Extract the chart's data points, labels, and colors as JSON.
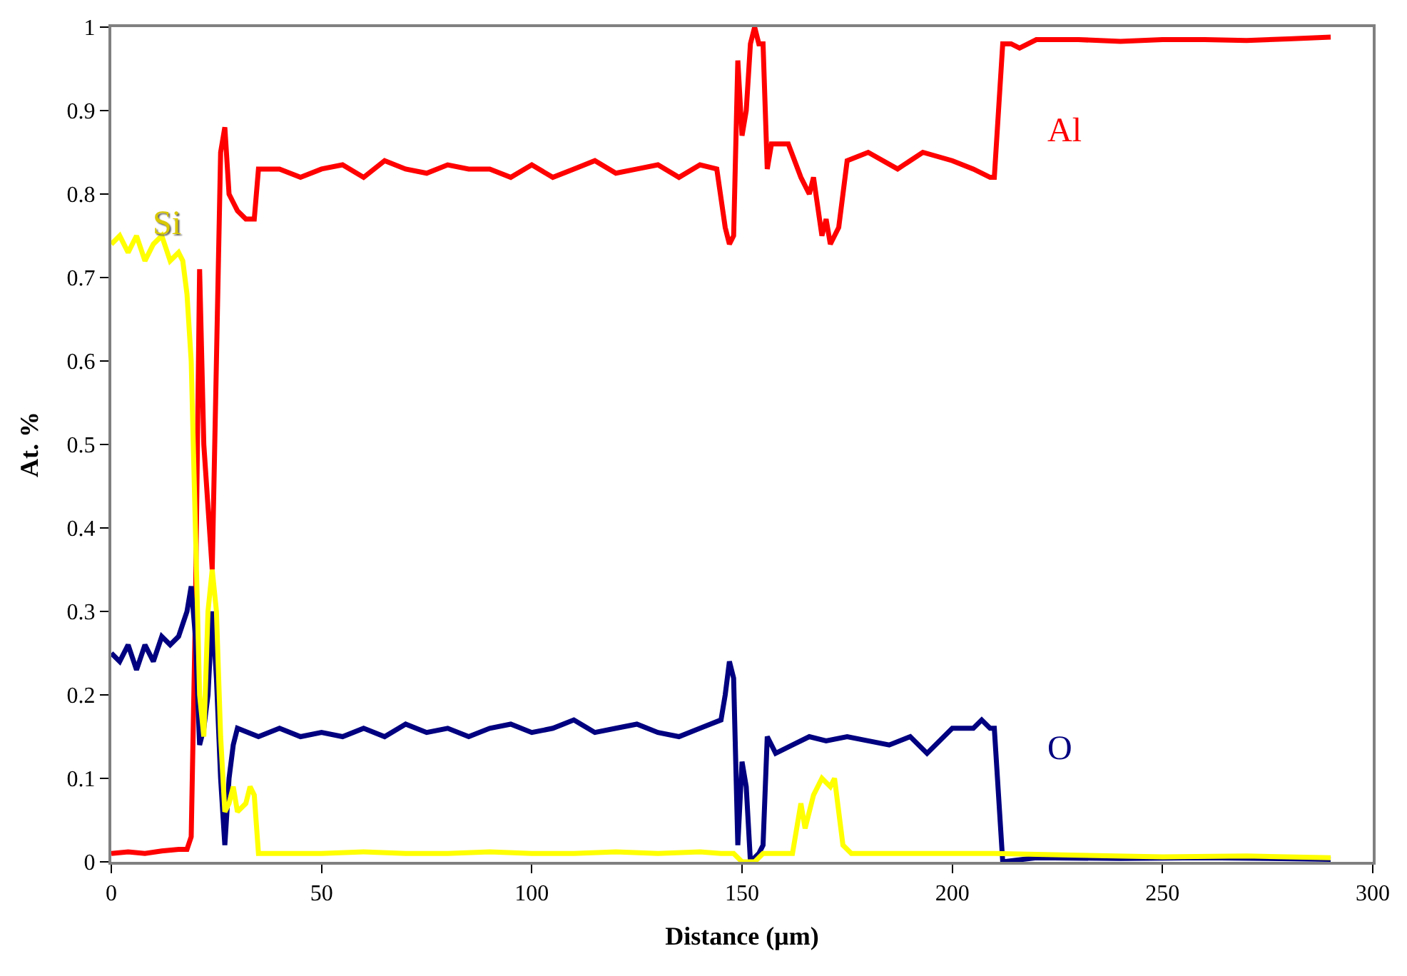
{
  "chart_data": {
    "type": "line",
    "xlabel": "Distance (µm)",
    "ylabel": "At. %",
    "xlim": [
      0,
      300
    ],
    "xticks": [
      0,
      50,
      100,
      150,
      200,
      250,
      300
    ],
    "ylim": [
      0,
      1
    ],
    "yticks": [
      0,
      0.1,
      0.2,
      0.3,
      0.4,
      0.5,
      0.6,
      0.7,
      0.8,
      0.9,
      1
    ],
    "legend": false,
    "marker": "none",
    "line_style": "solid",
    "series": [
      {
        "name": "Al",
        "color": "#ff0000",
        "x": [
          0,
          4,
          8,
          12,
          16,
          18,
          19,
          20,
          21,
          22,
          24,
          25,
          26,
          27,
          28,
          29,
          30,
          32,
          34,
          35,
          40,
          45,
          50,
          55,
          60,
          65,
          70,
          75,
          80,
          85,
          90,
          95,
          100,
          105,
          110,
          115,
          120,
          125,
          130,
          135,
          140,
          144,
          146,
          147,
          148,
          149,
          150,
          151,
          152,
          153,
          154,
          155,
          156,
          157,
          161,
          164,
          166,
          167,
          169,
          170,
          171,
          173,
          175,
          180,
          187,
          193,
          200,
          205,
          209,
          210,
          212,
          214,
          216,
          220,
          230,
          240,
          250,
          260,
          270,
          280,
          290
        ],
        "values": [
          0.01,
          0.012,
          0.01,
          0.013,
          0.015,
          0.015,
          0.03,
          0.3,
          0.71,
          0.5,
          0.35,
          0.6,
          0.85,
          0.88,
          0.8,
          0.79,
          0.78,
          0.77,
          0.77,
          0.83,
          0.83,
          0.82,
          0.83,
          0.835,
          0.82,
          0.84,
          0.83,
          0.825,
          0.835,
          0.83,
          0.83,
          0.82,
          0.835,
          0.82,
          0.83,
          0.84,
          0.825,
          0.83,
          0.835,
          0.82,
          0.835,
          0.83,
          0.76,
          0.74,
          0.75,
          0.96,
          0.87,
          0.9,
          0.98,
          1.0,
          0.98,
          0.98,
          0.83,
          0.86,
          0.86,
          0.82,
          0.8,
          0.82,
          0.75,
          0.77,
          0.74,
          0.76,
          0.84,
          0.85,
          0.83,
          0.85,
          0.84,
          0.83,
          0.82,
          0.82,
          0.98,
          0.98,
          0.975,
          0.985,
          0.985,
          0.983,
          0.985,
          0.985,
          0.984,
          0.986,
          0.988
        ]
      },
      {
        "name": "O",
        "color": "#000080",
        "x": [
          0,
          2,
          4,
          6,
          8,
          10,
          12,
          14,
          16,
          18,
          19,
          20,
          21,
          22,
          23,
          24,
          25,
          26,
          27,
          28,
          29,
          30,
          35,
          40,
          45,
          50,
          55,
          60,
          65,
          70,
          75,
          80,
          85,
          90,
          95,
          100,
          105,
          110,
          115,
          120,
          125,
          130,
          135,
          140,
          145,
          146,
          147,
          148,
          149,
          150,
          151,
          152,
          154,
          155,
          156,
          158,
          162,
          166,
          170,
          175,
          180,
          185,
          190,
          194,
          200,
          205,
          207,
          209,
          210,
          212,
          220,
          240,
          260,
          290
        ],
        "values": [
          0.25,
          0.24,
          0.26,
          0.23,
          0.26,
          0.24,
          0.27,
          0.26,
          0.27,
          0.3,
          0.33,
          0.27,
          0.14,
          0.16,
          0.2,
          0.3,
          0.22,
          0.1,
          0.02,
          0.1,
          0.14,
          0.16,
          0.15,
          0.16,
          0.15,
          0.155,
          0.15,
          0.16,
          0.15,
          0.165,
          0.155,
          0.16,
          0.15,
          0.16,
          0.165,
          0.155,
          0.16,
          0.17,
          0.155,
          0.16,
          0.165,
          0.155,
          0.15,
          0.16,
          0.17,
          0.2,
          0.24,
          0.22,
          0.02,
          0.12,
          0.09,
          0.0,
          0.01,
          0.02,
          0.15,
          0.13,
          0.14,
          0.15,
          0.145,
          0.15,
          0.145,
          0.14,
          0.15,
          0.13,
          0.16,
          0.16,
          0.17,
          0.16,
          0.16,
          0.0,
          0.005,
          0.004,
          0.005,
          0.003
        ]
      },
      {
        "name": "Si",
        "color": "#ffff00",
        "x": [
          0,
          2,
          4,
          6,
          8,
          10,
          12,
          14,
          16,
          17,
          18,
          19,
          20,
          21,
          22,
          23,
          24,
          25,
          26,
          27,
          28,
          29,
          30,
          32,
          33,
          34,
          35,
          40,
          50,
          60,
          70,
          80,
          90,
          100,
          110,
          120,
          130,
          140,
          145,
          148,
          150,
          153,
          155,
          162,
          164,
          165,
          167,
          169,
          171,
          172,
          174,
          176,
          190,
          210,
          230,
          250,
          270,
          290
        ],
        "values": [
          0.74,
          0.75,
          0.73,
          0.75,
          0.72,
          0.74,
          0.75,
          0.72,
          0.73,
          0.72,
          0.68,
          0.6,
          0.4,
          0.2,
          0.15,
          0.3,
          0.35,
          0.3,
          0.15,
          0.06,
          0.07,
          0.09,
          0.06,
          0.07,
          0.09,
          0.08,
          0.01,
          0.01,
          0.01,
          0.012,
          0.01,
          0.01,
          0.012,
          0.01,
          0.01,
          0.012,
          0.01,
          0.012,
          0.01,
          0.01,
          0.0,
          0.0,
          0.01,
          0.01,
          0.07,
          0.04,
          0.08,
          0.1,
          0.09,
          0.1,
          0.02,
          0.01,
          0.01,
          0.01,
          0.008,
          0.006,
          0.007,
          0.005
        ]
      }
    ]
  }
}
